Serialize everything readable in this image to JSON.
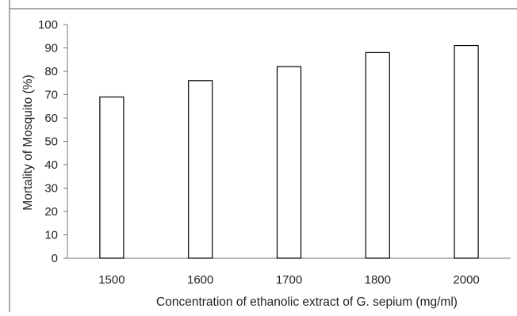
{
  "chart_data": {
    "type": "bar",
    "title": "",
    "xlabel": "Concentration of ethanolic extract of G. sepium (mg/ml)",
    "ylabel": "Mortality of Mosquito (%)",
    "categories": [
      "1500",
      "1600",
      "1700",
      "1800",
      "2000"
    ],
    "values": [
      69,
      76,
      82,
      88,
      91
    ],
    "ylim": [
      0,
      100
    ],
    "yticks": [
      0,
      10,
      20,
      30,
      40,
      50,
      60,
      70,
      80,
      90,
      100
    ],
    "grid": false,
    "legend": "none",
    "bar_fill": "#ffffff",
    "bar_stroke": "#000000"
  }
}
